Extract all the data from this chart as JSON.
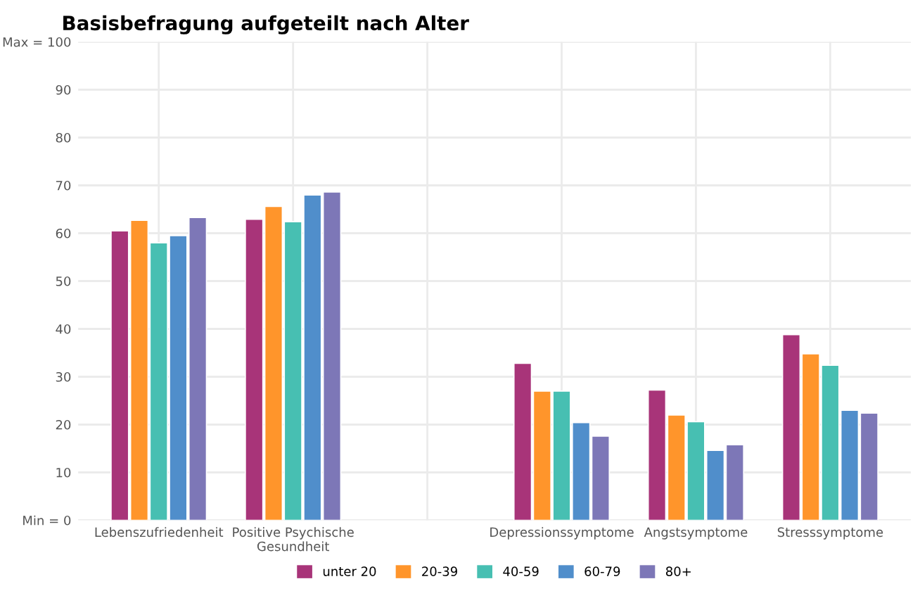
{
  "chart_data": {
    "type": "bar",
    "title": "Basisbefragung aufgeteilt nach Alter",
    "categories": [
      "Lebenszufriedenheit",
      "Positive Psychische\nGesundheit",
      null,
      "Depressionssymptome",
      "Angstsymptome",
      "Stresssymptome"
    ],
    "series": [
      {
        "name": "unter 20",
        "color": "#a83479",
        "values": [
          60.5,
          62.9,
          null,
          32.8,
          27.2,
          38.8
        ]
      },
      {
        "name": "20-39",
        "color": "#ff952b",
        "values": [
          62.7,
          65.6,
          null,
          27.0,
          22.0,
          34.8
        ]
      },
      {
        "name": "40-59",
        "color": "#47bfb2",
        "values": [
          58.0,
          62.4,
          null,
          27.0,
          20.6,
          32.4
        ]
      },
      {
        "name": "60-79",
        "color": "#508ecb",
        "values": [
          59.5,
          68.0,
          null,
          20.4,
          14.6,
          23.0
        ]
      },
      {
        "name": "80+",
        "color": "#7d77b7",
        "values": [
          63.3,
          68.6,
          null,
          17.6,
          15.8,
          22.4
        ]
      }
    ],
    "ylim": [
      0,
      100
    ],
    "yticks": [
      {
        "value": 0,
        "label": "Min = 0"
      },
      10,
      20,
      30,
      40,
      50,
      60,
      70,
      80,
      90,
      {
        "value": 100,
        "label": "Max = 100"
      }
    ],
    "grid": true,
    "legend": "bottom"
  }
}
